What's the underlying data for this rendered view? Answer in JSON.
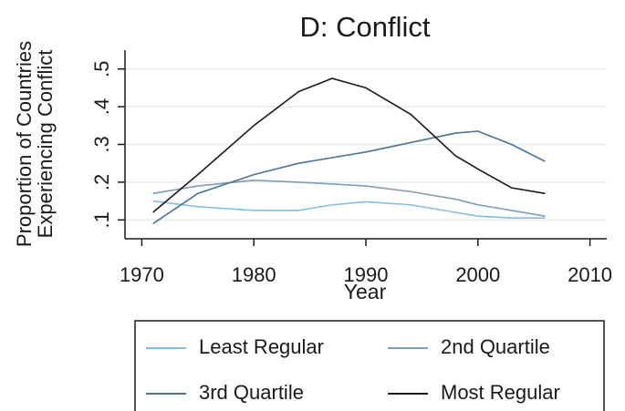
{
  "chart_data": {
    "type": "line",
    "title": "D: Conflict",
    "xlabel": "Year",
    "ylabel": [
      "Proportion of Countries",
      "Experiencing Conflict"
    ],
    "x": [
      1971,
      1975,
      1980,
      1984,
      1987,
      1990,
      1994,
      1998,
      2000,
      2003,
      2006
    ],
    "series": [
      {
        "name": "Least Regular",
        "color": "#86bde3",
        "values": [
          0.15,
          0.135,
          0.125,
          0.125,
          0.14,
          0.148,
          0.14,
          0.12,
          0.11,
          0.105,
          0.105
        ]
      },
      {
        "name": "2nd Quartile",
        "color": "#7f9db6",
        "values": [
          0.17,
          0.19,
          0.205,
          0.2,
          0.195,
          0.19,
          0.175,
          0.155,
          0.14,
          0.125,
          0.11
        ]
      },
      {
        "name": "3rd Quartile",
        "color": "#4e7393",
        "values": [
          0.09,
          0.17,
          0.22,
          0.25,
          0.265,
          0.28,
          0.305,
          0.33,
          0.335,
          0.3,
          0.255
        ]
      },
      {
        "name": "Most Regular",
        "color": "#1a1a1a",
        "values": [
          0.12,
          0.22,
          0.35,
          0.44,
          0.475,
          0.45,
          0.38,
          0.27,
          0.235,
          0.185,
          0.17
        ]
      }
    ],
    "xlim": [
      1968.5,
      2011.5
    ],
    "xticks": [
      1970,
      1980,
      1990,
      2000,
      2010
    ],
    "ylim": [
      0.05,
      0.55
    ],
    "yticks": [
      {
        "value": 0.1,
        "label": ".1"
      },
      {
        "value": 0.2,
        "label": ".2"
      },
      {
        "value": 0.3,
        "label": ".3"
      },
      {
        "value": 0.4,
        "label": ".4"
      },
      {
        "value": 0.5,
        "label": ".5"
      }
    ],
    "grid": true
  }
}
